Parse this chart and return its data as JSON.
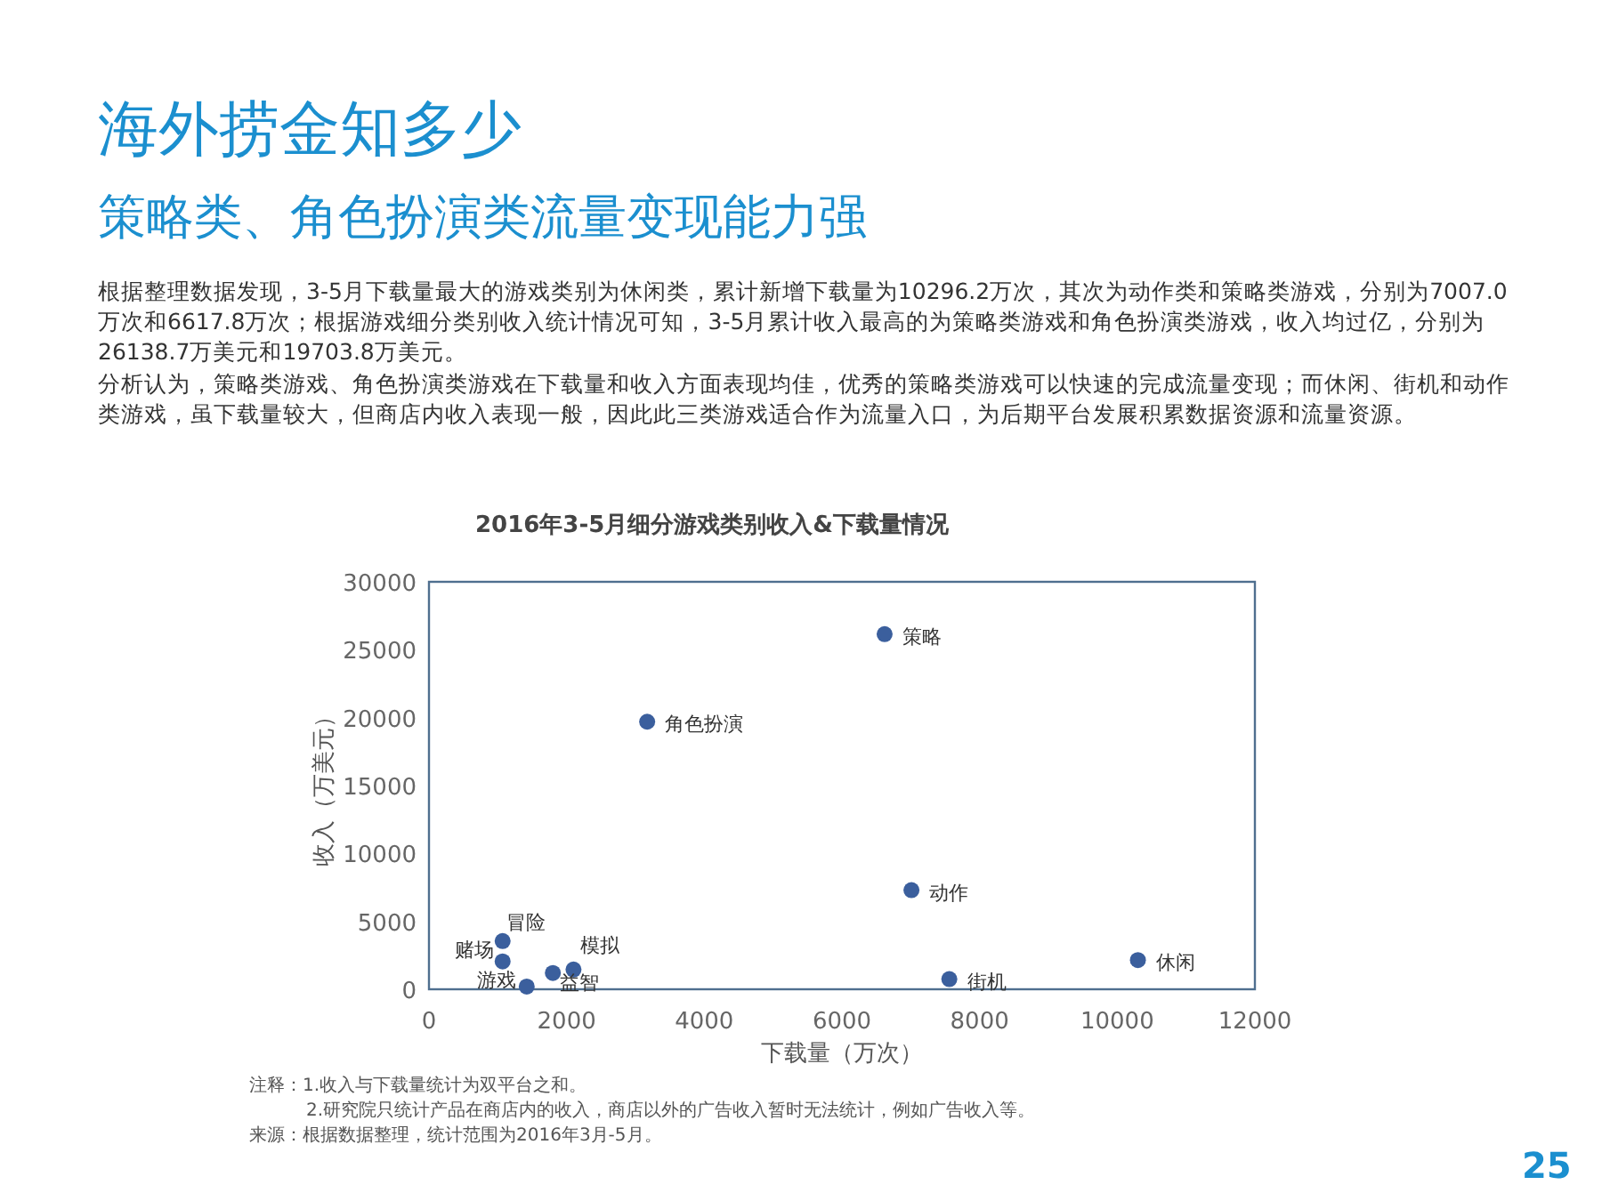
{
  "chart_data": {
    "type": "scatter",
    "title": "海外捞金知多少",
    "subtitle": "策略类、角色扮演类流量变现能力强",
    "xlabel": "下载量（万次）",
    "ylabel": "收入（万美元）",
    "series": [
      {
        "color": "#3b5f9d",
        "x": [
          6620,
          3170,
          7010,
          10300,
          7560,
          1070,
          1070,
          1420,
          1800,
          2100
        ],
        "values": [
          26150,
          19700,
          7300,
          2150,
          750,
          3550,
          2050,
          200,
          1200,
          1450
        ]
      }
    ],
    "xlim": [
      0,
      12000
    ],
    "xticks": [
      0,
      2000,
      4000,
      6000,
      8000,
      10000,
      12000
    ],
    "ylim": [
      0,
      30000
    ],
    "yticks": [
      0,
      5000,
      10000,
      15000,
      20000,
      25000,
      30000
    ],
    "marker": "circle",
    "grid": false,
    "annotations": [
      "根据整理数据发现，3-5月下载量最大的游戏类别为休闲类，累计新增下载量为10296.2万次，其次为动作类和策略类游戏，分别为7007.0万次和6617.8万次；根据游戏细分类别收入统计情况可知，3-5月累计收入最高的为策略类游戏和角色扮演类游戏，收入均过亿，分别为26138.7万美元和19703.8万美元。",
      "分析认为，策略类游戏、角色扮演类游戏在下载量和收入方面表现均佳，优秀的策略类游戏可以快速的完成流量变现；而休闲、街机和动作类游戏，虽下载量较大，但商店内收入表现一般，因此此三类游戏适合作为流量入口，为后期平台发展积累数据资源和流量资源。",
      "2016年3-5月细分游戏类别收入&下载量情况",
      {
        "text": "策略",
        "x": 6620,
        "y": 26150
      },
      {
        "text": "角色扮演",
        "x": 3170,
        "y": 19700
      },
      {
        "text": "动作",
        "x": 7010,
        "y": 7300
      },
      {
        "text": "休闲",
        "x": 10300,
        "y": 2150
      },
      {
        "text": "街机",
        "x": 7560,
        "y": 750
      },
      {
        "text": "冒险",
        "x": 1070,
        "y": 3550
      },
      {
        "text": "赌场",
        "x": 1070,
        "y": 2050
      },
      {
        "text": "游戏",
        "x": 1420,
        "y": 200
      },
      {
        "text": "益智",
        "x": 1800,
        "y": 1200
      },
      {
        "text": "模拟",
        "x": 2100,
        "y": 1450
      },
      "注释：1.收入与下载量统计为双平台之和。",
      "2.研究院只统计产品在商店内的收入，商店以外的广告收入暂时无法统计，例如广告收入等。",
      "来源：根据数据整理，统计范围为2016年3月-5月。",
      "25"
    ]
  }
}
